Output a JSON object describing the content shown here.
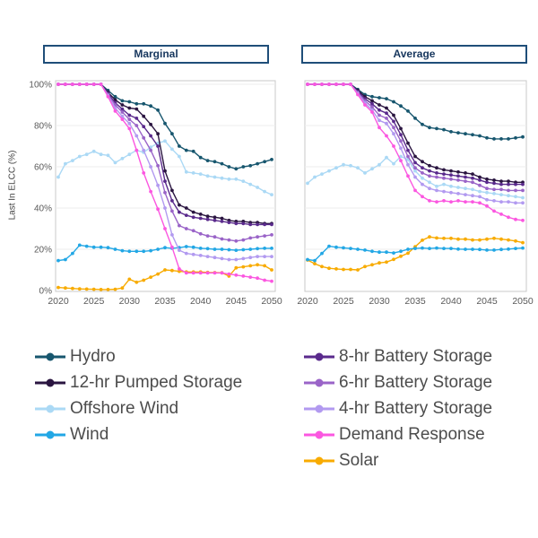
{
  "panels": [
    {
      "title": "Marginal"
    },
    {
      "title": "Average"
    }
  ],
  "axes": {
    "y_label": "Last In ELCC (%)",
    "y_ticks": [
      "0%",
      "20%",
      "40%",
      "60%",
      "80%",
      "100%"
    ],
    "x_ticks": [
      "2020",
      "2025",
      "2030",
      "2035",
      "2040",
      "2045",
      "2050"
    ]
  },
  "legend": {
    "columns": [
      [
        "Hydro",
        "12-hr Pumped Storage",
        "Offshore Wind",
        "Wind"
      ],
      [
        "8-hr Battery Storage",
        "6-hr Battery Storage",
        "4-hr Battery Storage",
        "Demand Response",
        "Solar"
      ]
    ]
  },
  "chart_data": [
    {
      "type": "line",
      "title": "Marginal",
      "y_label": "Last In ELCC (%)",
      "ylim": [
        0,
        100
      ],
      "grid": true,
      "x": [
        2020,
        2021,
        2022,
        2023,
        2024,
        2025,
        2026,
        2027,
        2028,
        2029,
        2030,
        2031,
        2032,
        2033,
        2034,
        2035,
        2036,
        2037,
        2038,
        2039,
        2040,
        2041,
        2042,
        2043,
        2044,
        2045,
        2046,
        2047,
        2048,
        2049,
        2050
      ],
      "series": [
        {
          "name": "Hydro",
          "color": "#17566e",
          "values": [
            100,
            100,
            100,
            100,
            100,
            100,
            100,
            97,
            94,
            92,
            91.5,
            90.5,
            90.5,
            89.5,
            87.5,
            81,
            76,
            70,
            68,
            67.5,
            64.5,
            63,
            62.5,
            61.5,
            60,
            59,
            60,
            60.5,
            61.5,
            62.5,
            63.5
          ]
        },
        {
          "name": "12-hr Pumped Storage",
          "color": "#2a1540",
          "values": [
            100,
            100,
            100,
            100,
            100,
            100,
            100,
            96,
            92.5,
            90,
            88.5,
            88,
            84.5,
            80.5,
            76,
            58,
            48.5,
            41.5,
            40,
            38,
            37,
            36,
            35.5,
            35,
            34,
            33.5,
            33.5,
            33,
            33,
            32.5,
            32.5
          ]
        },
        {
          "name": "8-hr Battery Storage",
          "color": "#5a2a8c",
          "values": [
            100,
            100,
            100,
            100,
            100,
            100,
            100,
            95.5,
            91,
            88,
            85,
            83.5,
            79.5,
            75,
            70,
            53,
            43.5,
            38,
            36.5,
            35.5,
            35,
            34.5,
            34,
            33.5,
            33,
            32.5,
            32.5,
            32,
            32,
            32,
            32
          ]
        },
        {
          "name": "6-hr Battery Storage",
          "color": "#9a64c8",
          "values": [
            100,
            100,
            100,
            100,
            100,
            100,
            100,
            95,
            90,
            86.5,
            83,
            80,
            74,
            68,
            60.5,
            47.5,
            38.5,
            31.5,
            30,
            29,
            27.5,
            26.5,
            26,
            25,
            24.5,
            24,
            24.5,
            25.5,
            26,
            26.5,
            27
          ]
        },
        {
          "name": "4-hr Battery Storage",
          "color": "#b29af0",
          "values": [
            100,
            100,
            100,
            100,
            100,
            100,
            100,
            94.5,
            88.5,
            84.5,
            81,
            75,
            68,
            60,
            51,
            40,
            27,
            19.5,
            18,
            17.5,
            17,
            16.5,
            16,
            15.5,
            15,
            15,
            15.5,
            16,
            16.5,
            16.5,
            16.5
          ]
        },
        {
          "name": "Demand Response",
          "color": "#fb57e0",
          "values": [
            100,
            100,
            100,
            100,
            100,
            100,
            100,
            94,
            87,
            83,
            78.5,
            68,
            57,
            48,
            39.5,
            30,
            21,
            10.5,
            8.5,
            8.5,
            8.5,
            8.5,
            8.5,
            8.5,
            8,
            7.5,
            7,
            6.5,
            6,
            5,
            4.5
          ]
        },
        {
          "name": "Offshore Wind",
          "color": "#abd9f5",
          "values": [
            55,
            61.5,
            63,
            65,
            66,
            67.5,
            66,
            65.5,
            62,
            64,
            66,
            68,
            67,
            69.5,
            71.5,
            72.5,
            68.5,
            65,
            57.5,
            57,
            56.5,
            55.5,
            55,
            54.5,
            54,
            54,
            53,
            51.5,
            50,
            48,
            46.5
          ]
        },
        {
          "name": "Wind",
          "color": "#22a7e5",
          "values": [
            14.5,
            15,
            18,
            22,
            21.5,
            21,
            21,
            20.8,
            20,
            19.3,
            19,
            19,
            19,
            19.3,
            20,
            20.8,
            20.5,
            20.8,
            21.3,
            21,
            20.5,
            20.3,
            20,
            20,
            19.8,
            19.5,
            19.8,
            20,
            20.3,
            20.5,
            20.5
          ]
        },
        {
          "name": "Solar",
          "color": "#f8ab00",
          "values": [
            1.5,
            1.2,
            1,
            0.8,
            0.7,
            0.6,
            0.5,
            0.5,
            0.6,
            1.2,
            5.5,
            4,
            5,
            6.5,
            8,
            10,
            9.7,
            9.3,
            9,
            9,
            9,
            8.8,
            8.7,
            8.6,
            7,
            11,
            11.5,
            12,
            12.5,
            12,
            10
          ]
        }
      ]
    },
    {
      "type": "line",
      "title": "Average",
      "y_label": "Last In ELCC (%)",
      "ylim": [
        0,
        100
      ],
      "grid": true,
      "x": [
        2020,
        2021,
        2022,
        2023,
        2024,
        2025,
        2026,
        2027,
        2028,
        2029,
        2030,
        2031,
        2032,
        2033,
        2034,
        2035,
        2036,
        2037,
        2038,
        2039,
        2040,
        2041,
        2042,
        2043,
        2044,
        2045,
        2046,
        2047,
        2048,
        2049,
        2050
      ],
      "series": [
        {
          "name": "Hydro",
          "color": "#17566e",
          "values": [
            100,
            100,
            100,
            100,
            100,
            100,
            100,
            97.5,
            95,
            94,
            93.5,
            93,
            91.5,
            89.5,
            87,
            83.5,
            80.5,
            79,
            78.5,
            78,
            77,
            76.5,
            76,
            75.5,
            75,
            74,
            73.5,
            73.5,
            73.5,
            74,
            74.5
          ]
        },
        {
          "name": "12-hr Pumped Storage",
          "color": "#2a1540",
          "values": [
            100,
            100,
            100,
            100,
            100,
            100,
            100,
            97,
            94,
            92,
            90,
            88.5,
            85,
            78.5,
            71.5,
            65,
            62.5,
            60.5,
            59.5,
            58.5,
            58,
            57.5,
            57,
            56.5,
            55,
            54,
            53.5,
            53,
            53,
            52.5,
            52.5
          ]
        },
        {
          "name": "8-hr Battery Storage",
          "color": "#5a2a8c",
          "values": [
            100,
            100,
            100,
            100,
            100,
            100,
            100,
            96.5,
            93,
            90.5,
            87.5,
            86,
            82,
            75.5,
            68,
            62,
            59.5,
            58,
            57,
            56.5,
            56,
            55.5,
            55,
            54.5,
            53.5,
            52.5,
            52,
            51.5,
            51.5,
            51.5,
            51.5
          ]
        },
        {
          "name": "6-hr Battery Storage",
          "color": "#9a64c8",
          "values": [
            100,
            100,
            100,
            100,
            100,
            100,
            100,
            96,
            92,
            89,
            85,
            83.5,
            79,
            72.5,
            65,
            59.5,
            57,
            55.5,
            55,
            54.5,
            54,
            53.5,
            53,
            52.5,
            51,
            49.5,
            49,
            49,
            48.5,
            48.5,
            48.5
          ]
        },
        {
          "name": "4-hr Battery Storage",
          "color": "#b29af0",
          "values": [
            100,
            100,
            100,
            100,
            100,
            100,
            100,
            95.5,
            91,
            87.5,
            82.5,
            81,
            76,
            69,
            61,
            55,
            51.5,
            49.5,
            48.5,
            48,
            47.5,
            47,
            46.5,
            46,
            45.5,
            44,
            43.5,
            43,
            43,
            42.5,
            42.5
          ]
        },
        {
          "name": "Demand Response",
          "color": "#fb57e0",
          "values": [
            100,
            100,
            100,
            100,
            100,
            100,
            100,
            95,
            90,
            86.5,
            79,
            75,
            70,
            63,
            55.5,
            48.5,
            45.5,
            43.5,
            43,
            43.5,
            43,
            43.5,
            43,
            43,
            42.5,
            41,
            38.5,
            37,
            35.5,
            34.5,
            34
          ]
        },
        {
          "name": "Offshore Wind",
          "color": "#abd9f5",
          "values": [
            52,
            55,
            56.5,
            58,
            59.5,
            61,
            60.5,
            59.5,
            57,
            59,
            61,
            64.5,
            61.5,
            65,
            63.5,
            58,
            54.5,
            52.5,
            50.5,
            51.5,
            50.5,
            50,
            49.5,
            49,
            48,
            47.5,
            47,
            46.5,
            46,
            45.5,
            45
          ]
        },
        {
          "name": "Wind",
          "color": "#22a7e5",
          "values": [
            15,
            14.5,
            18,
            21.5,
            21,
            20.7,
            20.4,
            20,
            19.6,
            19,
            18.6,
            18.6,
            18.2,
            19,
            20,
            20.4,
            20.6,
            20.4,
            20.6,
            20.4,
            20.4,
            20.1,
            20,
            20,
            19.9,
            19.6,
            19.6,
            19.9,
            20.1,
            20.4,
            20.6
          ]
        },
        {
          "name": "Solar",
          "color": "#f8ab00",
          "values": [
            14.8,
            13,
            11.6,
            10.8,
            10.5,
            10.2,
            10.2,
            10,
            11.6,
            12.5,
            13.4,
            13.8,
            15.1,
            16.6,
            18.1,
            21.2,
            24.4,
            26,
            25.5,
            25.3,
            25.3,
            24.9,
            24.9,
            24.5,
            24.5,
            24.9,
            25.3,
            24.9,
            24.5,
            24,
            23.2
          ]
        }
      ]
    }
  ]
}
